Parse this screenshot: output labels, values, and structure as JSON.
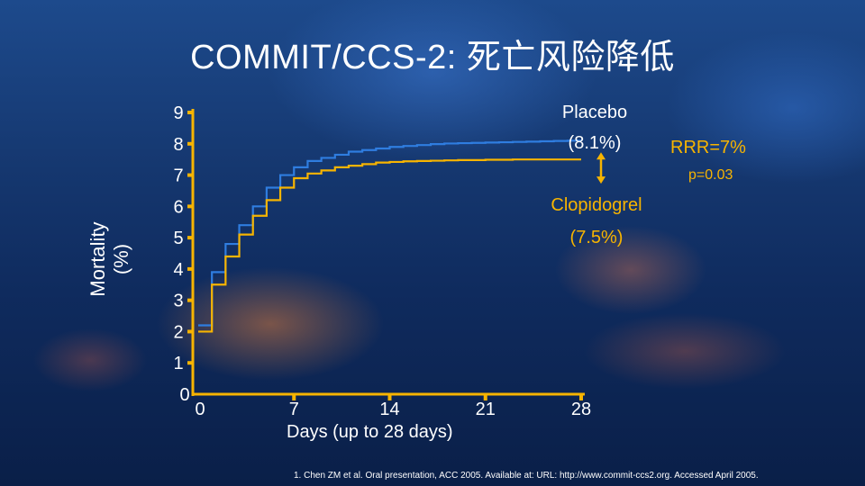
{
  "slide": {
    "title": "COMMIT/CCS-2: 死亡风险降低",
    "footnote": "1.  Chen ZM et al. Oral presentation, ACC 2005. Available at: URL: http://www.commit-ccs2.org.  Accessed April 2005."
  },
  "annotations": {
    "placebo_name": "Placebo",
    "placebo_value": "(8.1%)",
    "clopidogrel_name": "Clopidogrel",
    "clopidogrel_value": "(7.5%)",
    "rrr": "RRR=7%",
    "p_value": "p=0.03"
  },
  "colors": {
    "placebo": "#2f7de0",
    "clopidogrel": "#f7b400",
    "axis": "#f7b400"
  },
  "chart_data": {
    "type": "line",
    "step": true,
    "xlabel": "Days (up to 28 days)",
    "ylabel_lines": [
      "Mortality",
      "(%)"
    ],
    "xlim": [
      0,
      28
    ],
    "ylim": [
      0,
      9
    ],
    "xticks": [
      0,
      7,
      14,
      21,
      28
    ],
    "yticks": [
      0,
      1,
      2,
      3,
      4,
      5,
      6,
      7,
      8,
      9
    ],
    "grid": false,
    "series": [
      {
        "name": "Placebo",
        "x": [
          0,
          1,
          2,
          3,
          4,
          5,
          6,
          7,
          8,
          9,
          10,
          11,
          12,
          13,
          14,
          15,
          16,
          17,
          18,
          19,
          20,
          21,
          22,
          23,
          24,
          25,
          26,
          27,
          28
        ],
        "y": [
          2.2,
          3.9,
          4.8,
          5.4,
          6.0,
          6.6,
          7.0,
          7.25,
          7.45,
          7.55,
          7.65,
          7.75,
          7.8,
          7.85,
          7.9,
          7.93,
          7.96,
          7.99,
          8.01,
          8.02,
          8.03,
          8.04,
          8.05,
          8.06,
          8.07,
          8.08,
          8.09,
          8.1,
          8.1
        ]
      },
      {
        "name": "Clopidogrel",
        "x": [
          0,
          1,
          2,
          3,
          4,
          5,
          6,
          7,
          8,
          9,
          10,
          11,
          12,
          13,
          14,
          15,
          16,
          17,
          18,
          19,
          20,
          21,
          22,
          23,
          24,
          25,
          26,
          27,
          28
        ],
        "y": [
          2.0,
          3.5,
          4.4,
          5.1,
          5.7,
          6.2,
          6.6,
          6.9,
          7.05,
          7.15,
          7.25,
          7.3,
          7.35,
          7.4,
          7.42,
          7.44,
          7.45,
          7.46,
          7.47,
          7.48,
          7.48,
          7.49,
          7.49,
          7.5,
          7.5,
          7.5,
          7.5,
          7.5,
          7.5
        ]
      }
    ]
  }
}
